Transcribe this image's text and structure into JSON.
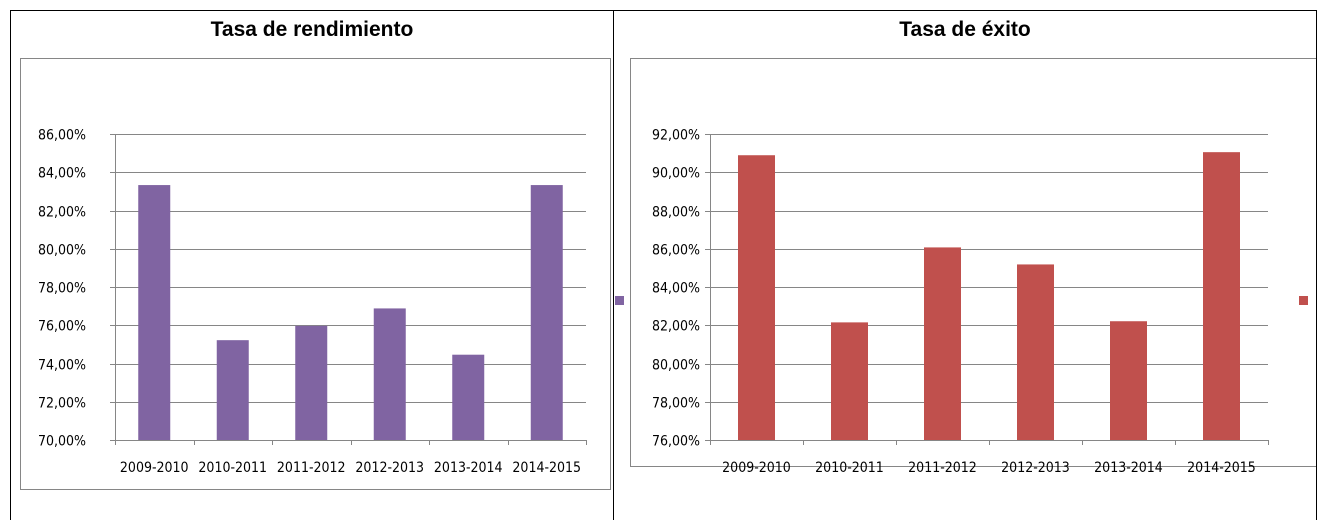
{
  "chart_data": [
    {
      "type": "bar",
      "title": "Tasa de rendimiento",
      "categories": [
        "2009-2010",
        "2010-2011",
        "2011-2012",
        "2012-2013",
        "2013-2014",
        "2014-2015"
      ],
      "series": [
        {
          "values": [
            83.33,
            75.22,
            75.97,
            76.88,
            74.46,
            83.33
          ],
          "color": "#8064A2"
        }
      ],
      "y_ticks": [
        "70,00%",
        "72,00%",
        "74,00%",
        "76,00%",
        "78,00%",
        "80,00%",
        "82,00%",
        "84,00%",
        "86,00%"
      ],
      "ylim": [
        70,
        86
      ],
      "grid": true,
      "legend": "right"
    },
    {
      "type": "bar",
      "title": "Tasa de éxito",
      "categories": [
        "2009-2010",
        "2010-2011",
        "2011-2012",
        "2012-2013",
        "2013-2014",
        "2014-2015"
      ],
      "series": [
        {
          "values": [
            90.89,
            82.15,
            86.07,
            85.18,
            82.21,
            91.05
          ],
          "color": "#C0504D"
        }
      ],
      "y_ticks": [
        "76,00%",
        "78,00%",
        "80,00%",
        "82,00%",
        "84,00%",
        "86,00%",
        "88,00%",
        "90,00%",
        "92,00%"
      ],
      "ylim": [
        76,
        92
      ],
      "grid": true,
      "legend": "right"
    }
  ]
}
